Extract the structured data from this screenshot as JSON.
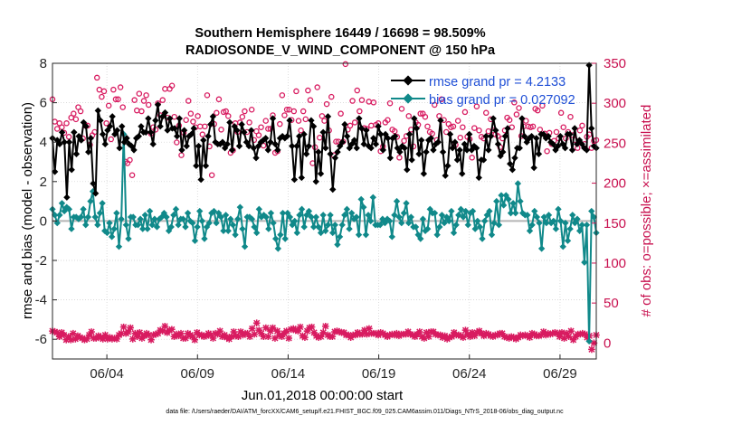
{
  "chart_data": {
    "type": "line",
    "title": "Southern Hemisphere 16449 / 16698 = 98.509%",
    "subtitle": "RADIOSONDE_V_WIND_COMPONENT @ 150 hPa",
    "xlabel": "Jun.01,2018 00:00:00 start",
    "ylabel": "rmse and bias (model - observation)",
    "ylabel_right": "# of obs: o=possible; ×=assimilated",
    "footnote": "data file: /Users/raeder/DAI/ATM_forcXX/CAM6_setup/f.e21.FHIST_BGC.f09_025.CAM6assim.011/Diags_NTrS_2018-06/obs_diag_output.nc",
    "x_tick_labels": [
      "06/04",
      "06/09",
      "06/14",
      "06/19",
      "06/24",
      "06/29"
    ],
    "y_tick_labels": [
      "8",
      "6",
      "4",
      "2",
      "0",
      "-2",
      "-4",
      "-6"
    ],
    "y2_tick_labels": [
      "350",
      "300",
      "250",
      "200",
      "150",
      "100",
      "50",
      "0"
    ],
    "xlim": [
      1.0,
      31.0
    ],
    "x_ticks": [
      4,
      9,
      14,
      19,
      24,
      29
    ],
    "ylim": [
      -7,
      8
    ],
    "y_ticks": [
      8,
      6,
      4,
      2,
      0,
      -2,
      -4,
      -6
    ],
    "y2lim": [
      -20,
      350
    ],
    "y2_ticks": [
      350,
      300,
      250,
      200,
      150,
      100,
      50,
      0
    ],
    "grid": true,
    "legend_position": "top-right",
    "series": [
      {
        "name": "rmse grand pr = 4.2133",
        "color": "#000000",
        "marker": "diamond",
        "values": [
          4.2,
          2.5,
          4.1,
          3.9,
          4.5,
          4.0,
          1.2,
          4.0,
          2.6,
          4.5,
          3.4,
          4.3,
          4.1,
          5.0,
          4.8,
          3.5,
          4.2,
          1.9,
          1.4,
          5.6,
          5.1,
          4.4,
          3.9,
          4.6,
          4.8,
          5.3,
          4.4,
          4.6,
          3.7,
          4.8,
          4.0,
          4.2,
          3.9,
          3.8,
          3.6,
          4.2,
          4.3,
          4.8,
          4.5,
          4.5,
          5.2,
          4.5,
          3.9,
          5.1,
          5.9,
          4.8,
          5.3,
          5.5,
          4.6,
          5.2,
          4.7,
          4.7,
          4.3,
          5.2,
          3.6,
          4.6,
          3.8,
          4.3,
          4.4,
          4.7,
          2.8,
          3.8,
          2.1,
          4.1,
          2.8,
          4.3,
          4.9,
          5.3,
          4.0,
          3.9,
          3.9,
          4.0,
          3.7,
          3.9,
          5.0,
          3.6,
          4.8,
          4.6,
          3.8,
          4.9,
          4.5,
          4.0,
          3.8,
          4.6,
          3.7,
          3.2,
          3.8,
          4.0,
          4.1,
          4.2,
          3.6,
          4.0,
          5.2,
          3.9,
          3.6,
          4.2,
          4.3,
          4.2,
          4.3,
          5.1,
          3.8,
          2.1,
          3.8,
          4.3,
          2.2,
          4.4,
          3.4,
          3.8,
          5.1,
          4.8,
          2.0,
          3.5,
          2.4,
          4.5,
          3.7,
          5.3,
          3.4,
          1.6,
          3.2,
          3.5,
          3.8,
          4.0,
          4.9,
          4.3,
          3.7,
          3.9,
          4.1,
          3.7,
          5.2,
          4.7,
          3.9,
          4.6,
          3.8,
          3.7,
          4.2,
          3.9,
          4.8,
          4.4,
          3.6,
          4.4,
          4.2,
          3.2,
          4.2,
          4.3,
          3.7,
          3.5,
          3.8,
          3.7,
          2.6,
          4.4,
          3.1,
          5.2,
          4.7,
          3.4,
          4.1,
          2.4,
          3.5,
          4.1,
          4.2,
          3.6,
          3.9,
          4.0,
          5.1,
          3.5,
          2.3,
          2.8,
          4.4,
          3.7,
          4.0,
          3.1,
          3.6,
          2.4,
          3.9,
          3.6,
          4.4,
          3.6,
          3.8,
          3.7,
          2.2,
          3.1,
          3.1,
          4.3,
          3.6,
          4.3,
          5.2,
          4.6,
          3.9,
          3.3,
          3.5,
          4.3,
          4.7,
          2.9,
          2.6,
          3.2,
          3.7,
          3.7,
          5.2,
          4.3,
          4.0,
          4.2,
          4.3,
          2.7,
          4.2,
          3.4,
          4.4,
          4.4,
          4.2,
          4.3,
          4.0,
          3.9,
          3.6,
          3.8,
          4.3,
          3.9,
          3.7,
          4.4,
          4.4,
          3.6,
          4.7,
          3.9,
          4.1,
          3.9,
          3.7,
          3.6,
          7.9,
          4.7,
          3.8,
          3.7
        ]
      },
      {
        "name": "bias grand pr = 0.027092",
        "color": "#10898a",
        "marker": "diamond",
        "values": [
          0.6,
          0.3,
          -0.1,
          0.3,
          0.9,
          0.5,
          0.7,
          0.6,
          -0.4,
          0.2,
          0.2,
          0.1,
          0.2,
          0.6,
          -0.2,
          0.2,
          1.0,
          1.5,
          0.2,
          -0.2,
          0.4,
          0.9,
          -0.5,
          -0.6,
          -0.1,
          -0.8,
          -0.4,
          0.4,
          -1.3,
          0.1,
          4.4,
          -0.2,
          -0.9,
          0.2,
          0.2,
          -0.2,
          -0.2,
          0.1,
          -0.4,
          0.3,
          -0.4,
          0.5,
          -0.2,
          0.1,
          -0.3,
          0.1,
          0.2,
          0.4,
          0.2,
          -0.5,
          -0.3,
          0.3,
          0.6,
          -0.2,
          0.1,
          0.1,
          -0.3,
          0.4,
          0.0,
          -0.1,
          -1.0,
          -0.3,
          0.5,
          0.0,
          -0.9,
          -0.3,
          -0.1,
          0.4,
          0.5,
          -0.1,
          0.4,
          0.2,
          -0.5,
          0.3,
          -0.5,
          0.1,
          -0.2,
          -0.7,
          0.1,
          0.7,
          -0.4,
          -1.3,
          0.2,
          0.2,
          0.1,
          -0.3,
          -0.6,
          0.6,
          0.2,
          0.3,
          0.2,
          -0.4,
          0.4,
          -0.1,
          -0.9,
          -1.4,
          -0.7,
          0.4,
          -0.9,
          0.4,
          0.2,
          -0.2,
          0.0,
          -0.6,
          0.3,
          0.6,
          -0.3,
          0.3,
          0.5,
          0.2,
          -0.3,
          0.2,
          -0.3,
          -0.6,
          0.3,
          -0.5,
          -0.2,
          0.3,
          -0.6,
          -0.2,
          -1.2,
          -0.8,
          -0.2,
          0.3,
          0.6,
          -0.4,
          0.4,
          0.1,
          0.2,
          -0.7,
          1.1,
          0.7,
          -0.7,
          0.3,
          0.0,
          1.2,
          -0.2,
          -0.2,
          -0.2,
          0.1,
          -0.1,
          0.1,
          0.0,
          -0.8,
          0.3,
          1.0,
          0.2,
          -0.1,
          0.4,
          0.9,
          -0.1,
          0.2,
          -0.3,
          -0.3,
          -0.7,
          -0.9,
          0.1,
          -0.5,
          -0.4,
          0.6,
          0.4,
          0.4,
          -0.7,
          -0.3,
          0.3,
          -0.1,
          0.2,
          0.0,
          0.5,
          -0.6,
          -0.2,
          0.3,
          0.6,
          0.2,
          0.5,
          -0.2,
          0.4,
          0.5,
          -0.4,
          0.0,
          -0.3,
          -0.9,
          0.0,
          0.3,
          0.5,
          -0.7,
          -0.1,
          1.0,
          -0.2,
          1.3,
          0.8,
          1.3,
          1.1,
          0.4,
          0.9,
          0.4,
          1.9,
          1.0,
          0.4,
          0.3,
          0.3,
          -0.5,
          -0.2,
          0.5,
          0.2,
          -0.1,
          -1.4,
          0.2,
          -0.1,
          0.3,
          -0.1,
          0.0,
          -0.4,
          0.6,
          0.0,
          -1.3,
          -0.1,
          -1.0,
          -0.4,
          0.3,
          -0.1,
          0.1,
          -0.5,
          -0.2,
          -2.1,
          -0.2,
          -6.1,
          0.5,
          0.2,
          -0.6
        ]
      },
      {
        "name": "obs possible",
        "color": "#d81b60",
        "marker": "o",
        "values": [
          305,
          277,
          268,
          275,
          270,
          263,
          275,
          258,
          282,
          287,
          280,
          295,
          290,
          256,
          272,
          272,
          248,
          260,
          264,
          332,
          317,
          308,
          315,
          275,
          297,
          255,
          317,
          305,
          305,
          320,
          295,
          227,
          225,
          229,
          210,
          304,
          291,
          312,
          290,
          303,
          310,
          298,
          262,
          270,
          267,
          300,
          285,
          304,
          318,
          282,
          318,
          322,
          283,
          251,
          272,
          235,
          263,
          279,
          303,
          287,
          277,
          270,
          284,
          271,
          261,
          271,
          310,
          246,
          210,
          274,
          288,
          305,
          267,
          289,
          290,
          284,
          238,
          241,
          275,
          264,
          276,
          283,
          290,
          264,
          276,
          292,
          254,
          265,
          260,
          270,
          247,
          278,
          268,
          268,
          285,
          238,
          240,
          274,
          310,
          285,
          292,
          292,
          279,
          290,
          315,
          278,
          266,
          290,
          280,
          316,
          304,
          225,
          245,
          320,
          257,
          284,
          278,
          299,
          266,
          308,
          235,
          252,
          252,
          287,
          252,
          349,
          267,
          272,
          303,
          276,
          316,
          290,
          304,
          269,
          268,
          302,
          272,
          301,
          273,
          275,
          240,
          246,
          276,
          279,
          300,
          267,
          265,
          258,
          232,
          293,
          253,
          259,
          284,
          267,
          246,
          276,
          273,
          287,
          287,
          283,
          271,
          264,
          262,
          298,
          254,
          284,
          305,
          279,
          264,
          274,
          270,
          271,
          248,
          278,
          257,
          270,
          289,
          258,
          255,
          232,
          269,
          296,
          266,
          258,
          256,
          288,
          265,
          280,
          266,
          261,
          259,
          245,
          256,
          266,
          282,
          279,
          270,
          301,
          286,
          294,
          259,
          271,
          278,
          271,
          270,
          271,
          293,
          291,
          267,
          297,
          262,
          240,
          263,
          249,
          253,
          264,
          256,
          288,
          270,
          256,
          264,
          283,
          260,
          254,
          244,
          266,
          272,
          249,
          258,
          261,
          244,
          253,
          254
        ]
      },
      {
        "name": "obs assimilated",
        "color": "#d81b60",
        "marker": "x",
        "values": [
          15,
          14,
          13,
          8,
          13,
          10,
          4,
          8,
          4,
          12,
          5,
          9,
          7,
          6,
          4,
          5,
          10,
          14,
          6,
          6,
          9,
          7,
          5,
          10,
          5,
          7,
          5,
          6,
          5,
          10,
          12,
          20,
          12,
          14,
          19,
          5,
          12,
          8,
          13,
          6,
          9,
          12,
          10,
          4,
          10,
          11,
          12,
          16,
          15,
          21,
          13,
          16,
          17,
          8,
          11,
          9,
          12,
          6,
          6,
          12,
          10,
          8,
          4,
          13,
          10,
          10,
          8,
          9,
          12,
          10,
          6,
          12,
          11,
          15,
          8,
          10,
          7,
          5,
          8,
          14,
          9,
          8,
          14,
          10,
          12,
          12,
          8,
          18,
          11,
          25,
          16,
          12,
          8,
          19,
          8,
          15,
          19,
          6,
          15,
          10,
          8,
          12,
          15,
          6,
          17,
          18,
          16,
          15,
          20,
          9,
          7,
          15,
          19,
          20,
          13,
          9,
          7,
          8,
          13,
          21,
          10,
          8,
          8,
          14,
          15,
          14,
          13,
          13,
          10,
          10,
          7,
          10,
          10,
          13,
          11,
          11,
          16,
          11,
          18,
          12,
          12,
          12,
          10,
          13,
          12,
          10,
          8,
          10,
          11,
          10,
          12,
          9,
          11,
          11,
          11,
          14,
          11,
          10,
          8,
          11,
          14,
          8,
          6,
          13,
          8,
          14,
          14,
          11,
          10,
          10,
          7,
          9,
          5,
          7,
          8,
          13,
          10,
          10,
          9,
          7,
          16,
          11,
          8,
          13,
          9,
          13,
          15,
          12,
          9,
          12,
          11,
          9,
          8,
          10,
          10,
          12,
          12,
          8,
          7,
          6,
          8,
          7,
          5,
          7,
          10,
          9,
          10,
          9,
          7,
          12,
          11,
          9,
          9,
          10,
          14,
          10,
          12,
          11,
          12,
          13,
          12,
          8,
          13,
          6,
          12,
          8,
          15,
          4,
          8,
          11,
          11,
          12,
          11,
          7,
          9,
          -8,
          0,
          10
        ]
      }
    ]
  }
}
